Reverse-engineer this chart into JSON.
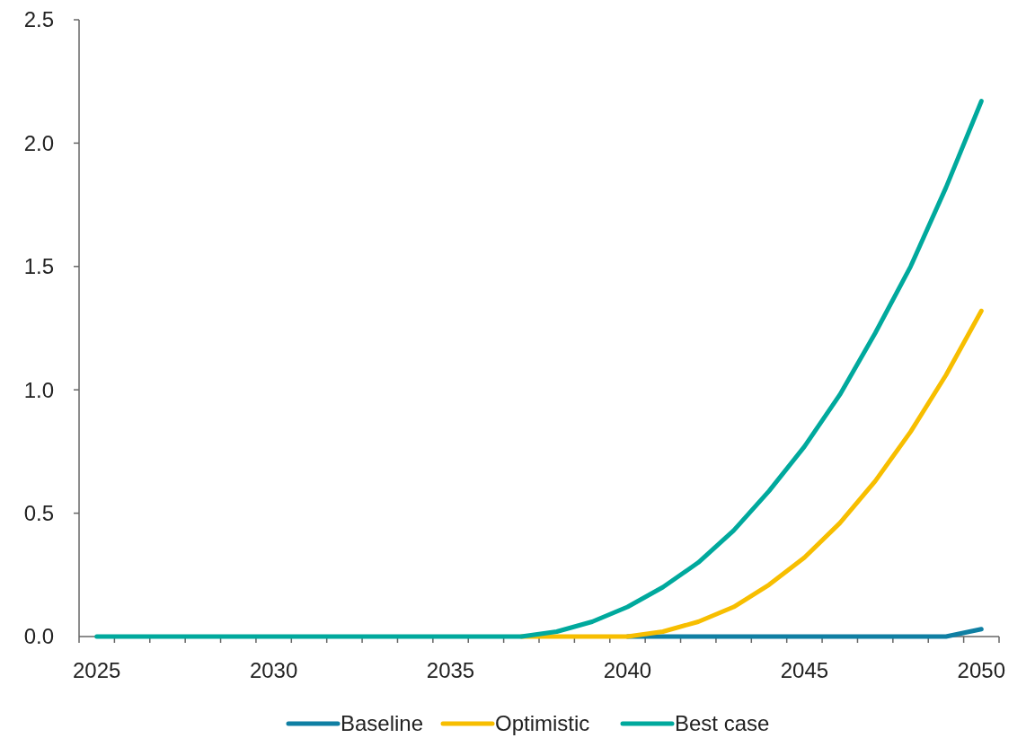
{
  "chart_data": {
    "type": "line",
    "x": [
      2025,
      2026,
      2027,
      2028,
      2029,
      2030,
      2031,
      2032,
      2033,
      2034,
      2035,
      2036,
      2037,
      2038,
      2039,
      2040,
      2041,
      2042,
      2043,
      2044,
      2045,
      2046,
      2047,
      2048,
      2049,
      2050
    ],
    "series": [
      {
        "name": "Baseline",
        "color": "#0f7fa3",
        "values": [
          null,
          null,
          null,
          null,
          null,
          null,
          null,
          null,
          null,
          null,
          null,
          null,
          null,
          null,
          null,
          0,
          0,
          0,
          0,
          0,
          0,
          0,
          0,
          0,
          0,
          0.03
        ]
      },
      {
        "name": "Optimistic",
        "color": "#f7be00",
        "values": [
          null,
          null,
          null,
          null,
          null,
          null,
          null,
          null,
          null,
          null,
          null,
          null,
          0,
          0,
          0,
          0,
          0.02,
          0.06,
          0.12,
          0.21,
          0.32,
          0.46,
          0.63,
          0.83,
          1.06,
          1.32
        ]
      },
      {
        "name": "Best case",
        "color": "#00a99d",
        "values": [
          0,
          0,
          0,
          0,
          0,
          0,
          0,
          0,
          0,
          0,
          0,
          0,
          0,
          0.02,
          0.06,
          0.12,
          0.2,
          0.3,
          0.43,
          0.59,
          0.77,
          0.98,
          1.23,
          1.5,
          1.82,
          2.17
        ]
      }
    ],
    "xlim": [
      2024.5,
      2050.5
    ],
    "xticks": [
      2025,
      2030,
      2035,
      2040,
      2045,
      2050
    ],
    "ylim": [
      0,
      2.5
    ],
    "yticks": [
      {
        "value": 0,
        "label": "0.0"
      },
      {
        "value": 0.5,
        "label": "0.5"
      },
      {
        "value": 1,
        "label": "1.0"
      },
      {
        "value": 1.5,
        "label": "1.5"
      },
      {
        "value": 2,
        "label": "2.0"
      },
      {
        "value": 2.5,
        "label": "2.5"
      }
    ],
    "grid": false,
    "legend": "bottom",
    "marker": "none",
    "line_style": "solid"
  }
}
